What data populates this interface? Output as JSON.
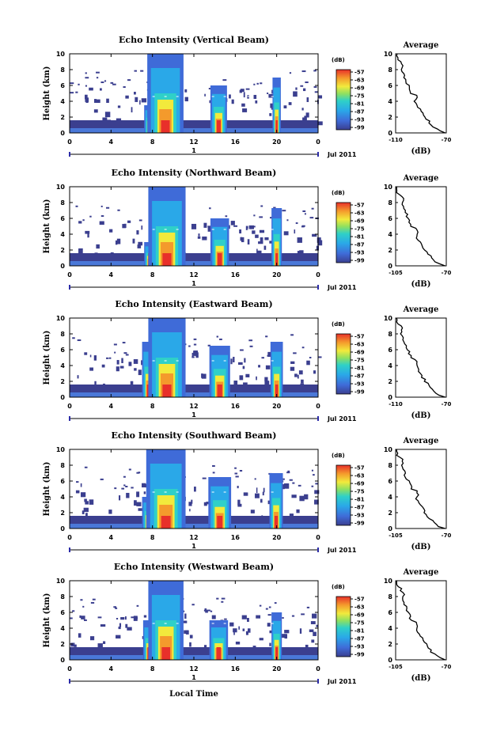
{
  "figure": {
    "local_time_label": "Local Time"
  },
  "chart_data": [
    {
      "type": "heatmap",
      "title": "Echo Intensity (Vertical Beam)",
      "ylabel": "Height (km)",
      "ylim": [
        0,
        10
      ],
      "yticks": [
        0,
        2,
        4,
        6,
        8,
        10
      ],
      "xticks": [
        "0",
        "4",
        "8",
        "12",
        "16",
        "20",
        "0"
      ],
      "xlim_hours": [
        0,
        24
      ],
      "date_label": "Jul 2011",
      "day_label": "1",
      "colorbar": {
        "unit": "(dB)",
        "ticks": [
          "-57",
          "-63",
          "-69",
          "-75",
          "-81",
          "-87",
          "-93",
          "-99"
        ]
      },
      "clouds": [
        {
          "t0": 7.2,
          "t1": 8.2,
          "top": 3.5
        },
        {
          "t0": 7.5,
          "t1": 11.0,
          "top": 10.0
        },
        {
          "t0": 13.6,
          "t1": 15.2,
          "top": 6.0
        },
        {
          "t0": 19.6,
          "t1": 20.4,
          "top": 7.0
        }
      ],
      "average": {
        "title": "Average",
        "xlabel": "(dB)",
        "xlim": [
          -110,
          -70
        ],
        "xticks": [
          "-110",
          "-70"
        ],
        "ylim": [
          0,
          10
        ],
        "yticks": [
          0,
          2,
          4,
          6,
          8,
          10
        ]
      }
    },
    {
      "type": "heatmap",
      "title": "Echo Intensity (Northward Beam)",
      "ylabel": "Height (km)",
      "ylim": [
        0,
        10
      ],
      "yticks": [
        0,
        2,
        4,
        6,
        8,
        10
      ],
      "xticks": [
        "0",
        "4",
        "8",
        "12",
        "16",
        "20",
        "0"
      ],
      "xlim_hours": [
        0,
        24
      ],
      "date_label": "Jul 2011",
      "day_label": "1",
      "colorbar": {
        "unit": "(dB)",
        "ticks": [
          "-57",
          "-63",
          "-69",
          "-75",
          "-81",
          "-87",
          "-93",
          "-99"
        ]
      },
      "clouds": [
        {
          "t0": 7.2,
          "t1": 8.2,
          "top": 3.0
        },
        {
          "t0": 7.6,
          "t1": 11.2,
          "top": 10.0
        },
        {
          "t0": 13.6,
          "t1": 15.4,
          "top": 6.0
        },
        {
          "t0": 19.5,
          "t1": 20.5,
          "top": 7.3
        }
      ],
      "average": {
        "title": "Average",
        "xlabel": "(dB)",
        "xlim": [
          -105,
          -70
        ],
        "xticks": [
          "-105",
          "-70"
        ],
        "ylim": [
          0,
          10
        ],
        "yticks": [
          0,
          2,
          4,
          6,
          8,
          10
        ]
      }
    },
    {
      "type": "heatmap",
      "title": "Echo Intensity (Eastward Beam)",
      "ylabel": "Height (km)",
      "ylim": [
        0,
        10
      ],
      "yticks": [
        0,
        2,
        4,
        6,
        8,
        10
      ],
      "xticks": [
        "0",
        "4",
        "8",
        "12",
        "16",
        "20",
        "0"
      ],
      "xlim_hours": [
        0,
        24
      ],
      "date_label": "Jul 2011",
      "day_label": "1",
      "colorbar": {
        "unit": "(dB)",
        "ticks": [
          "-57",
          "-63",
          "-69",
          "-75",
          "-81",
          "-87",
          "-93",
          "-99"
        ]
      },
      "clouds": [
        {
          "t0": 7.0,
          "t1": 8.2,
          "top": 7.0
        },
        {
          "t0": 7.6,
          "t1": 11.2,
          "top": 10.0
        },
        {
          "t0": 13.5,
          "t1": 15.5,
          "top": 6.5
        },
        {
          "t0": 19.4,
          "t1": 20.6,
          "top": 7.0
        }
      ],
      "average": {
        "title": "Average",
        "xlabel": "(dB)",
        "xlim": [
          -110,
          -70
        ],
        "xticks": [
          "-110",
          "-70"
        ],
        "ylim": [
          0,
          10
        ],
        "yticks": [
          0,
          2,
          4,
          6,
          8,
          10
        ]
      }
    },
    {
      "type": "heatmap",
      "title": "Echo Intensity (Southward Beam)",
      "ylabel": "Height (km)",
      "ylim": [
        0,
        10
      ],
      "yticks": [
        0,
        2,
        4,
        6,
        8,
        10
      ],
      "xticks": [
        "0",
        "4",
        "8",
        "12",
        "16",
        "20",
        "0"
      ],
      "xlim_hours": [
        0,
        24
      ],
      "date_label": "Jul 2011",
      "day_label": "1",
      "colorbar": {
        "unit": "(dB)",
        "ticks": [
          "-57",
          "-63",
          "-69",
          "-75",
          "-81",
          "-87",
          "-93",
          "-99"
        ]
      },
      "clouds": [
        {
          "t0": 7.0,
          "t1": 8.2,
          "top": 4.0
        },
        {
          "t0": 7.4,
          "t1": 11.2,
          "top": 10.0
        },
        {
          "t0": 13.4,
          "t1": 15.6,
          "top": 6.5
        },
        {
          "t0": 19.3,
          "t1": 20.6,
          "top": 7.0
        }
      ],
      "average": {
        "title": "Average",
        "xlabel": "(dB)",
        "xlim": [
          -105,
          -70
        ],
        "xticks": [
          "-105",
          "-70"
        ],
        "ylim": [
          0,
          10
        ],
        "yticks": [
          0,
          2,
          4,
          6,
          8,
          10
        ]
      }
    },
    {
      "type": "heatmap",
      "title": "Echo Intensity (Westward Beam)",
      "ylabel": "Height (km)",
      "ylim": [
        0,
        10
      ],
      "yticks": [
        0,
        2,
        4,
        6,
        8,
        10
      ],
      "xticks": [
        "0",
        "4",
        "8",
        "12",
        "16",
        "20",
        "0"
      ],
      "xlim_hours": [
        0,
        24
      ],
      "date_label": "Jul 2011",
      "day_label": "1",
      "colorbar": {
        "unit": "(dB)",
        "ticks": [
          "-57",
          "-63",
          "-69",
          "-75",
          "-81",
          "-87",
          "-93",
          "-99"
        ]
      },
      "clouds": [
        {
          "t0": 7.1,
          "t1": 8.2,
          "top": 5.0
        },
        {
          "t0": 7.6,
          "t1": 11.0,
          "top": 10.0
        },
        {
          "t0": 13.5,
          "t1": 15.3,
          "top": 5.0
        },
        {
          "t0": 19.5,
          "t1": 20.5,
          "top": 6.0
        }
      ],
      "average": {
        "title": "Average",
        "xlabel": "(dB)",
        "xlim": [
          -105,
          -70
        ],
        "xticks": [
          "-105",
          "-70"
        ],
        "ylim": [
          0,
          10
        ],
        "yticks": [
          0,
          2,
          4,
          6,
          8,
          10
        ]
      }
    }
  ]
}
